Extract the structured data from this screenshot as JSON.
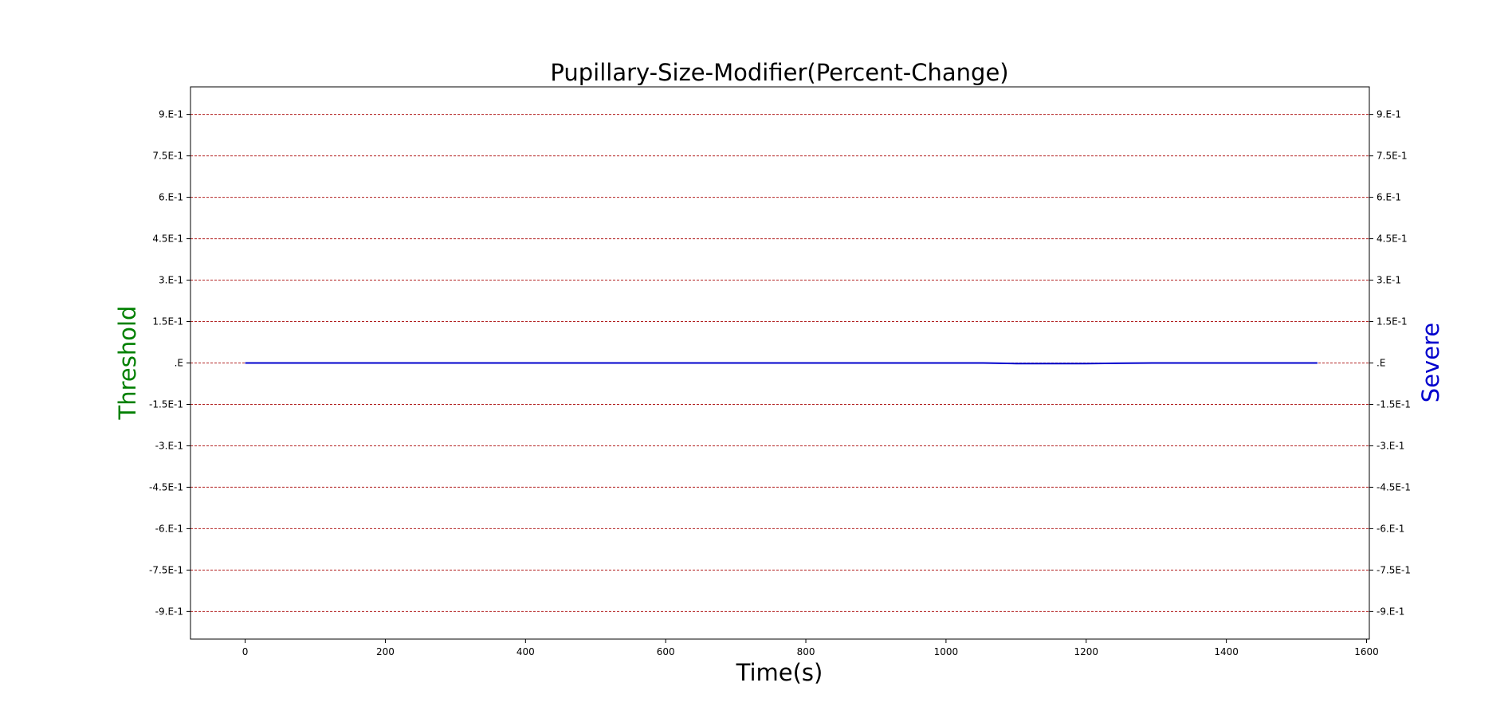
{
  "chart_data": {
    "type": "line",
    "title": "Pupillary-Size-Modifier(Percent-Change)",
    "xlabel": "Time(s)",
    "ylabel_left": "Threshold",
    "ylabel_right": "Severe",
    "xlim": [
      -78,
      1604
    ],
    "ylim": [
      -1.0,
      1.0
    ],
    "x_ticks": [
      0,
      200,
      400,
      600,
      800,
      1000,
      1200,
      1400,
      1600
    ],
    "x_tick_labels": [
      "0",
      "200",
      "400",
      "600",
      "800",
      "1000",
      "1200",
      "1400",
      "1600"
    ],
    "y_ticks": [
      0.9,
      0.75,
      0.6,
      0.45,
      0.3,
      0.15,
      0.0,
      -0.15,
      -0.3,
      -0.45,
      -0.6,
      -0.75,
      -0.9
    ],
    "y_tick_labels": [
      "9.E-1",
      "7.5E-1",
      "6.E-1",
      "4.5E-1",
      "3.E-1",
      "1.5E-1",
      ".E",
      "-1.5E-1",
      "-3.E-1",
      "-4.5E-1",
      "-6.E-1",
      "-7.5E-1",
      "-9.E-1"
    ],
    "grid": "horizontal dashed at y ticks",
    "series": [
      {
        "x": [
          0,
          200,
          400,
          600,
          800,
          1000,
          1053,
          1100,
          1200,
          1295,
          1400,
          1530
        ],
        "y": [
          0.0,
          0.0,
          0.0,
          0.0,
          0.0,
          0.0,
          0.0,
          -0.002,
          -0.002,
          0.0,
          0.0,
          0.0
        ]
      }
    ],
    "colors": {
      "series_line": "#0000cc",
      "grid_line": "#b22222",
      "ylabel_left": "#008000",
      "ylabel_right": "#0000cd",
      "axis": "#000000"
    }
  }
}
